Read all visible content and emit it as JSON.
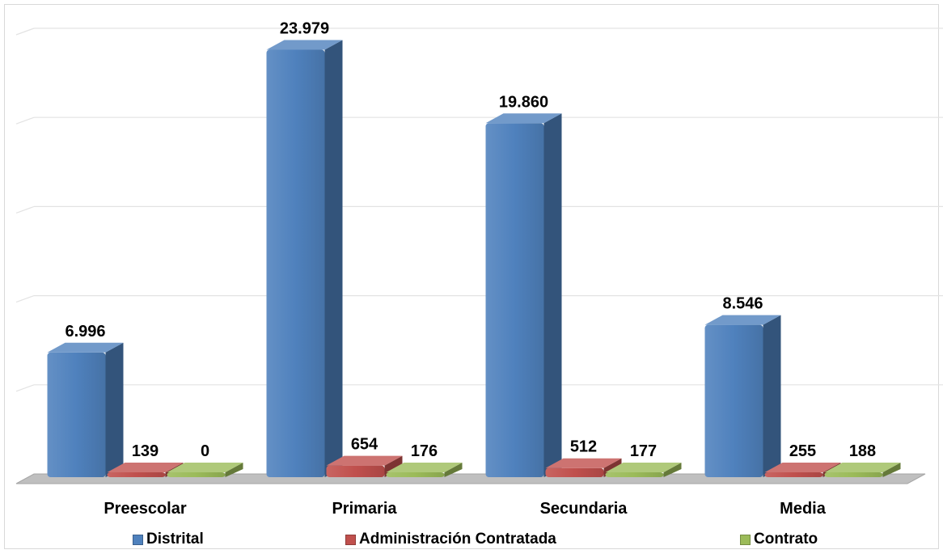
{
  "chart_data": {
    "type": "bar",
    "categories": [
      "Preescolar",
      "Primaria",
      "Secundaria",
      "Media"
    ],
    "series": [
      {
        "name": "Distrital",
        "values": [
          6996,
          23979,
          19860,
          8546
        ],
        "labels": [
          "6.996",
          "23.979",
          "19.860",
          "8.546"
        ],
        "color": "#4f81bd"
      },
      {
        "name": "Administración Contratada",
        "values": [
          139,
          654,
          512,
          255
        ],
        "labels": [
          "139",
          "654",
          "512",
          "255"
        ],
        "color": "#c0504d"
      },
      {
        "name": "Contrato",
        "values": [
          0,
          176,
          177,
          188
        ],
        "labels": [
          "0",
          "176",
          "177",
          "188"
        ],
        "color": "#9bbb59"
      }
    ],
    "ylim": [
      0,
      25000
    ],
    "gridlines": true,
    "legend_position": "bottom",
    "style": "3d-clustered-column"
  }
}
